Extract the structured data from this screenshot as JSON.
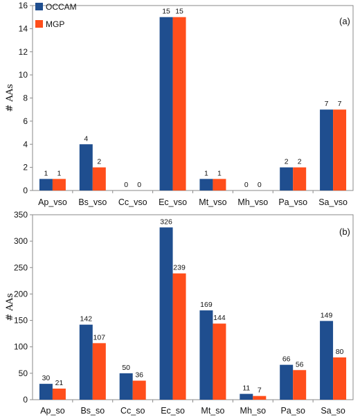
{
  "chart_data": [
    {
      "type": "bar",
      "panel_label": "(a)",
      "ylabel": "# AAs",
      "xlabel": "",
      "ylim": [
        0,
        16
      ],
      "yticks": [
        0,
        2,
        4,
        6,
        8,
        10,
        12,
        14,
        16
      ],
      "grid": false,
      "legend": "top-left",
      "categories": [
        "Ap_vso",
        "Bs_vso",
        "Cc_vso",
        "Ec_vso",
        "Mt_vso",
        "Mh_vso",
        "Pa_vso",
        "Sa_vso"
      ],
      "series": [
        {
          "name": "OCCAM",
          "color": "#1f4e8f",
          "values": [
            1,
            4,
            0,
            15,
            1,
            0,
            2,
            7
          ]
        },
        {
          "name": "MGP",
          "color": "#ff4e1b",
          "values": [
            1,
            2,
            0,
            15,
            1,
            0,
            2,
            7
          ]
        }
      ]
    },
    {
      "type": "bar",
      "panel_label": "(b)",
      "ylabel": "# AAs",
      "xlabel": "",
      "ylim": [
        0,
        350
      ],
      "yticks": [
        0,
        50,
        100,
        150,
        200,
        250,
        300,
        350
      ],
      "grid": false,
      "categories": [
        "Ap_so",
        "Bs_so",
        "Cc_so",
        "Ec_so",
        "Mt_so",
        "Mh_so",
        "Pa_so",
        "Sa_so"
      ],
      "series": [
        {
          "name": "OCCAM",
          "color": "#1f4e8f",
          "values": [
            30,
            142,
            50,
            326,
            169,
            11,
            66,
            149
          ]
        },
        {
          "name": "MGP",
          "color": "#ff4e1b",
          "values": [
            21,
            107,
            36,
            239,
            144,
            7,
            56,
            80
          ]
        }
      ]
    }
  ],
  "legend": {
    "occam": "OCCAM",
    "mgp": "MGP"
  }
}
